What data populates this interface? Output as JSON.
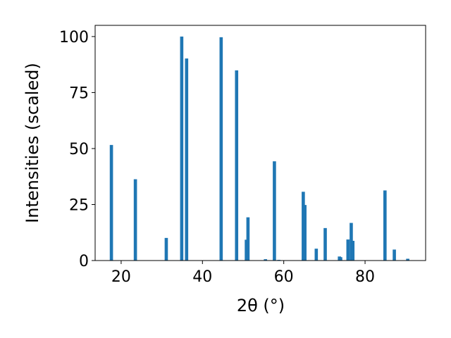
{
  "chart_data": {
    "type": "bar",
    "color": "#1f77b4",
    "bar_width": 0.8,
    "x_label": "2θ (°)",
    "y_label": "Intensities (scaled)",
    "x": [
      17.6,
      23.5,
      31.1,
      34.9,
      36.1,
      44.6,
      48.4,
      50.8,
      51.2,
      55.5,
      57.7,
      58.8,
      64.8,
      65.2,
      68.0,
      70.2,
      73.7,
      74.0,
      75.8,
      76.6,
      77.0,
      84.9,
      87.2,
      90.5
    ],
    "values": [
      51.6,
      36.3,
      10.1,
      100,
      90.2,
      99.7,
      84.9,
      9.3,
      19.3,
      0.6,
      44.3,
      0.3,
      30.7,
      24.8,
      5.3,
      14.5,
      1.8,
      1.5,
      9.4,
      16.8,
      8.8,
      31.3,
      4.9,
      0.8
    ],
    "xlim": [
      13.6,
      94.9
    ],
    "ylim": [
      0,
      105
    ],
    "xticks": [
      20,
      40,
      60,
      80
    ],
    "yticks": [
      0,
      25,
      50,
      75,
      100
    ]
  }
}
